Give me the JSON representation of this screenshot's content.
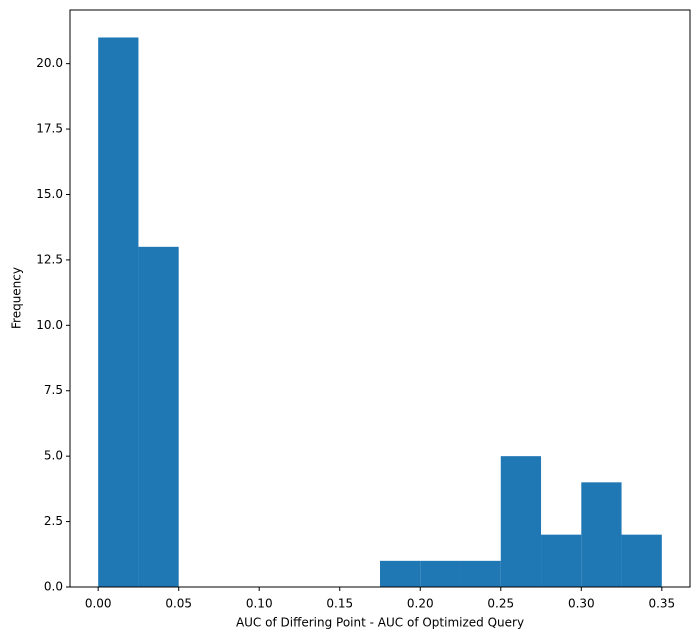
{
  "chart_data": {
    "type": "histogram",
    "xlabel": "AUC of Differing Point - AUC of Optimized Query",
    "ylabel": "Frequency",
    "bins": [
      0,
      0.025,
      0.05,
      0.075,
      0.1,
      0.125,
      0.15,
      0.175,
      0.2,
      0.225,
      0.25,
      0.275,
      0.3,
      0.325,
      0.35
    ],
    "values": [
      21,
      13,
      0,
      0,
      0,
      0,
      0,
      1,
      1,
      1,
      5,
      2,
      4,
      2
    ],
    "color": "#1f77b4",
    "xlim": [
      -0.0175,
      0.3675
    ],
    "ylim": [
      0,
      22.05
    ],
    "xticks": [
      {
        "value": 0,
        "label": "0.00"
      },
      {
        "value": 0.05,
        "label": "0.05"
      },
      {
        "value": 0.1,
        "label": "0.10"
      },
      {
        "value": 0.15,
        "label": "0.15"
      },
      {
        "value": 0.2,
        "label": "0.20"
      },
      {
        "value": 0.25,
        "label": "0.25"
      },
      {
        "value": 0.3,
        "label": "0.30"
      },
      {
        "value": 0.35,
        "label": "0.35"
      }
    ],
    "yticks": [
      {
        "value": 0,
        "label": "0.0"
      },
      2.5,
      {
        "value": 5,
        "label": "5.0"
      },
      7.5,
      {
        "value": 10,
        "label": "10.0"
      },
      12.5,
      {
        "value": 15,
        "label": "15.0"
      },
      17.5,
      {
        "value": 20,
        "label": "20.0"
      }
    ]
  }
}
